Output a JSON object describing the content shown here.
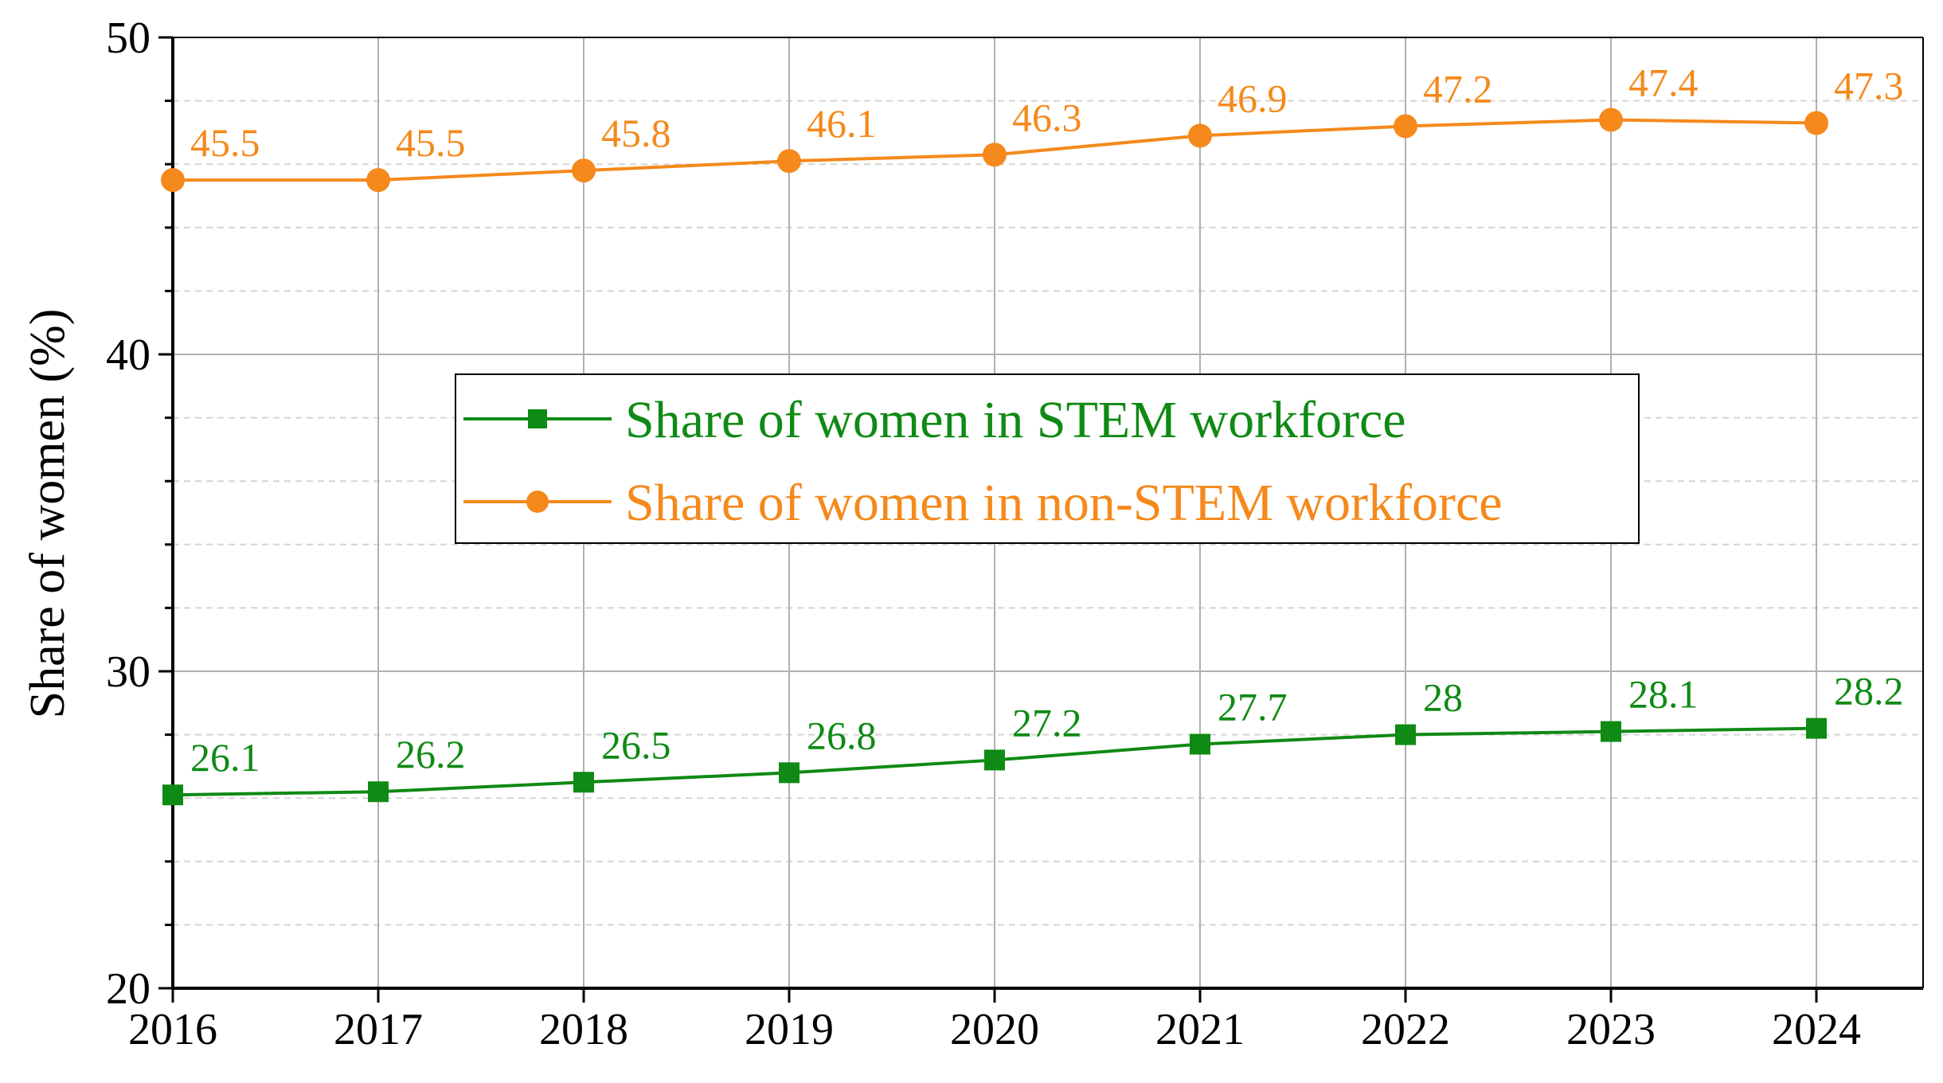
{
  "colors": {
    "stem": "#0f8a14",
    "non_stem": "#f5891b",
    "axis": "#000000",
    "grid_major": "#b0b0b0",
    "grid_minor": "#d4d4d4"
  },
  "chart_data": {
    "type": "line",
    "title": "",
    "xlabel": "",
    "ylabel": "Share of women (%)",
    "x": [
      "2016",
      "2017",
      "2018",
      "2019",
      "2020",
      "2021",
      "2022",
      "2023",
      "2024"
    ],
    "ylim": [
      20,
      50
    ],
    "yticks": [
      "20",
      "30",
      "40",
      "50"
    ],
    "grid": true,
    "legend_position": "center",
    "series": [
      {
        "name": "Share of women in STEM workforce",
        "marker": "square",
        "color_key": "stem",
        "values": [
          26.1,
          26.2,
          26.5,
          26.8,
          27.2,
          27.7,
          28,
          28.1,
          28.2
        ],
        "labels": [
          "26.1",
          "26.2",
          "26.5",
          "26.8",
          "27.2",
          "27.7",
          "28",
          "28.1",
          "28.2"
        ]
      },
      {
        "name": "Share of women in non-STEM workforce",
        "marker": "circle",
        "color_key": "non_stem",
        "values": [
          45.5,
          45.5,
          45.8,
          46.1,
          46.3,
          46.9,
          47.2,
          47.4,
          47.3
        ],
        "labels": [
          "45.5",
          "45.5",
          "45.8",
          "46.1",
          "46.3",
          "46.9",
          "47.2",
          "47.4",
          "47.3"
        ]
      }
    ]
  }
}
